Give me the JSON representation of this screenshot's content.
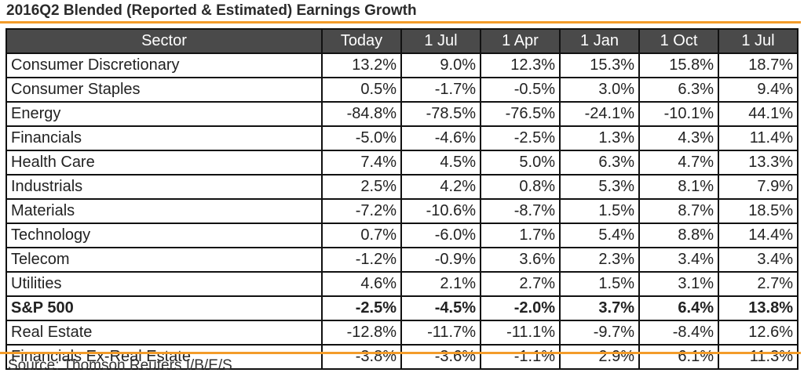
{
  "title": "2016Q2 Blended (Reported & Estimated) Earnings Growth",
  "source": "Source: Thomson Reuters I/B/E/S",
  "colors": {
    "accent_rule": "#f39c2a",
    "header_bg": "#4a4a4a",
    "header_text": "#ffffff"
  },
  "chart_data": {
    "type": "table",
    "title": "2016Q2 Blended (Reported & Estimated) Earnings Growth",
    "columns": [
      "Sector",
      "Today",
      "1 Jul",
      "1 Apr",
      "1 Jan",
      "1 Oct",
      "1 Jul"
    ],
    "rows": [
      {
        "sector": "Consumer Discretionary",
        "values": [
          "13.2%",
          "9.0%",
          "12.3%",
          "15.3%",
          "15.8%",
          "18.7%"
        ],
        "bold": false
      },
      {
        "sector": "Consumer Staples",
        "values": [
          "0.5%",
          "-1.7%",
          "-0.5%",
          "3.0%",
          "6.3%",
          "9.4%"
        ],
        "bold": false
      },
      {
        "sector": "Energy",
        "values": [
          "-84.8%",
          "-78.5%",
          "-76.5%",
          "-24.1%",
          "-10.1%",
          "44.1%"
        ],
        "bold": false
      },
      {
        "sector": "Financials",
        "values": [
          "-5.0%",
          "-4.6%",
          "-2.5%",
          "1.3%",
          "4.3%",
          "11.4%"
        ],
        "bold": false
      },
      {
        "sector": "Health Care",
        "values": [
          "7.4%",
          "4.5%",
          "5.0%",
          "6.3%",
          "4.7%",
          "13.3%"
        ],
        "bold": false
      },
      {
        "sector": "Industrials",
        "values": [
          "2.5%",
          "4.2%",
          "0.8%",
          "5.3%",
          "8.1%",
          "7.9%"
        ],
        "bold": false
      },
      {
        "sector": "Materials",
        "values": [
          "-7.2%",
          "-10.6%",
          "-8.7%",
          "1.5%",
          "8.7%",
          "18.5%"
        ],
        "bold": false
      },
      {
        "sector": "Technology",
        "values": [
          "0.7%",
          "-6.0%",
          "1.7%",
          "5.4%",
          "8.8%",
          "14.4%"
        ],
        "bold": false
      },
      {
        "sector": "Telecom",
        "values": [
          "-1.2%",
          "-0.9%",
          "3.6%",
          "2.3%",
          "3.4%",
          "3.4%"
        ],
        "bold": false
      },
      {
        "sector": "Utilities",
        "values": [
          "4.6%",
          "2.1%",
          "2.7%",
          "1.5%",
          "3.1%",
          "2.7%"
        ],
        "bold": false
      },
      {
        "sector": "S&P 500",
        "values": [
          "-2.5%",
          "-4.5%",
          "-2.0%",
          "3.7%",
          "6.4%",
          "13.8%"
        ],
        "bold": true
      },
      {
        "sector": "Real Estate",
        "values": [
          "-12.8%",
          "-11.7%",
          "-11.1%",
          "-9.7%",
          "-8.4%",
          "12.6%"
        ],
        "bold": false
      },
      {
        "sector": "Financials Ex-Real Estate",
        "values": [
          "-3.8%",
          "-3.6%",
          "-1.1%",
          "2.9%",
          "6.1%",
          "11.3%"
        ],
        "bold": false
      }
    ]
  }
}
